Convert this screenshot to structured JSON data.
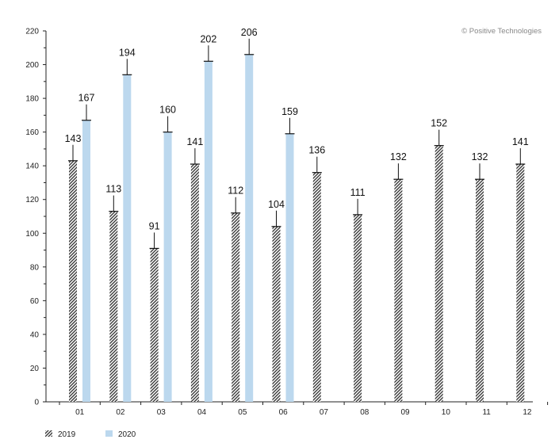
{
  "chart_data": {
    "type": "bar",
    "categories": [
      "01",
      "02",
      "03",
      "04",
      "05",
      "06",
      "07",
      "08",
      "09",
      "10",
      "11",
      "12"
    ],
    "series": [
      {
        "name": "2019",
        "values": [
          143,
          113,
          91,
          141,
          112,
          104,
          136,
          111,
          132,
          152,
          132,
          141
        ]
      },
      {
        "name": "2020",
        "values": [
          167,
          194,
          160,
          202,
          206,
          159,
          null,
          null,
          null,
          null,
          null,
          null
        ]
      }
    ],
    "title": "",
    "xlabel": "",
    "ylabel": "",
    "ylim": [
      0,
      220
    ],
    "yticks": [
      0,
      20,
      40,
      60,
      80,
      100,
      120,
      140,
      160,
      180,
      200,
      220
    ],
    "grid": false,
    "legend_placement": "bottom-left",
    "copyright": "© Positive Technologies",
    "colors": {
      "series_2019": "#3a3a3a",
      "series_2020": "#bcd8ee",
      "axis": "#222222",
      "label": "#111111"
    },
    "legend": [
      {
        "label": "2019",
        "pattern": "hatch"
      },
      {
        "label": "2020",
        "pattern": "solid"
      }
    ]
  }
}
